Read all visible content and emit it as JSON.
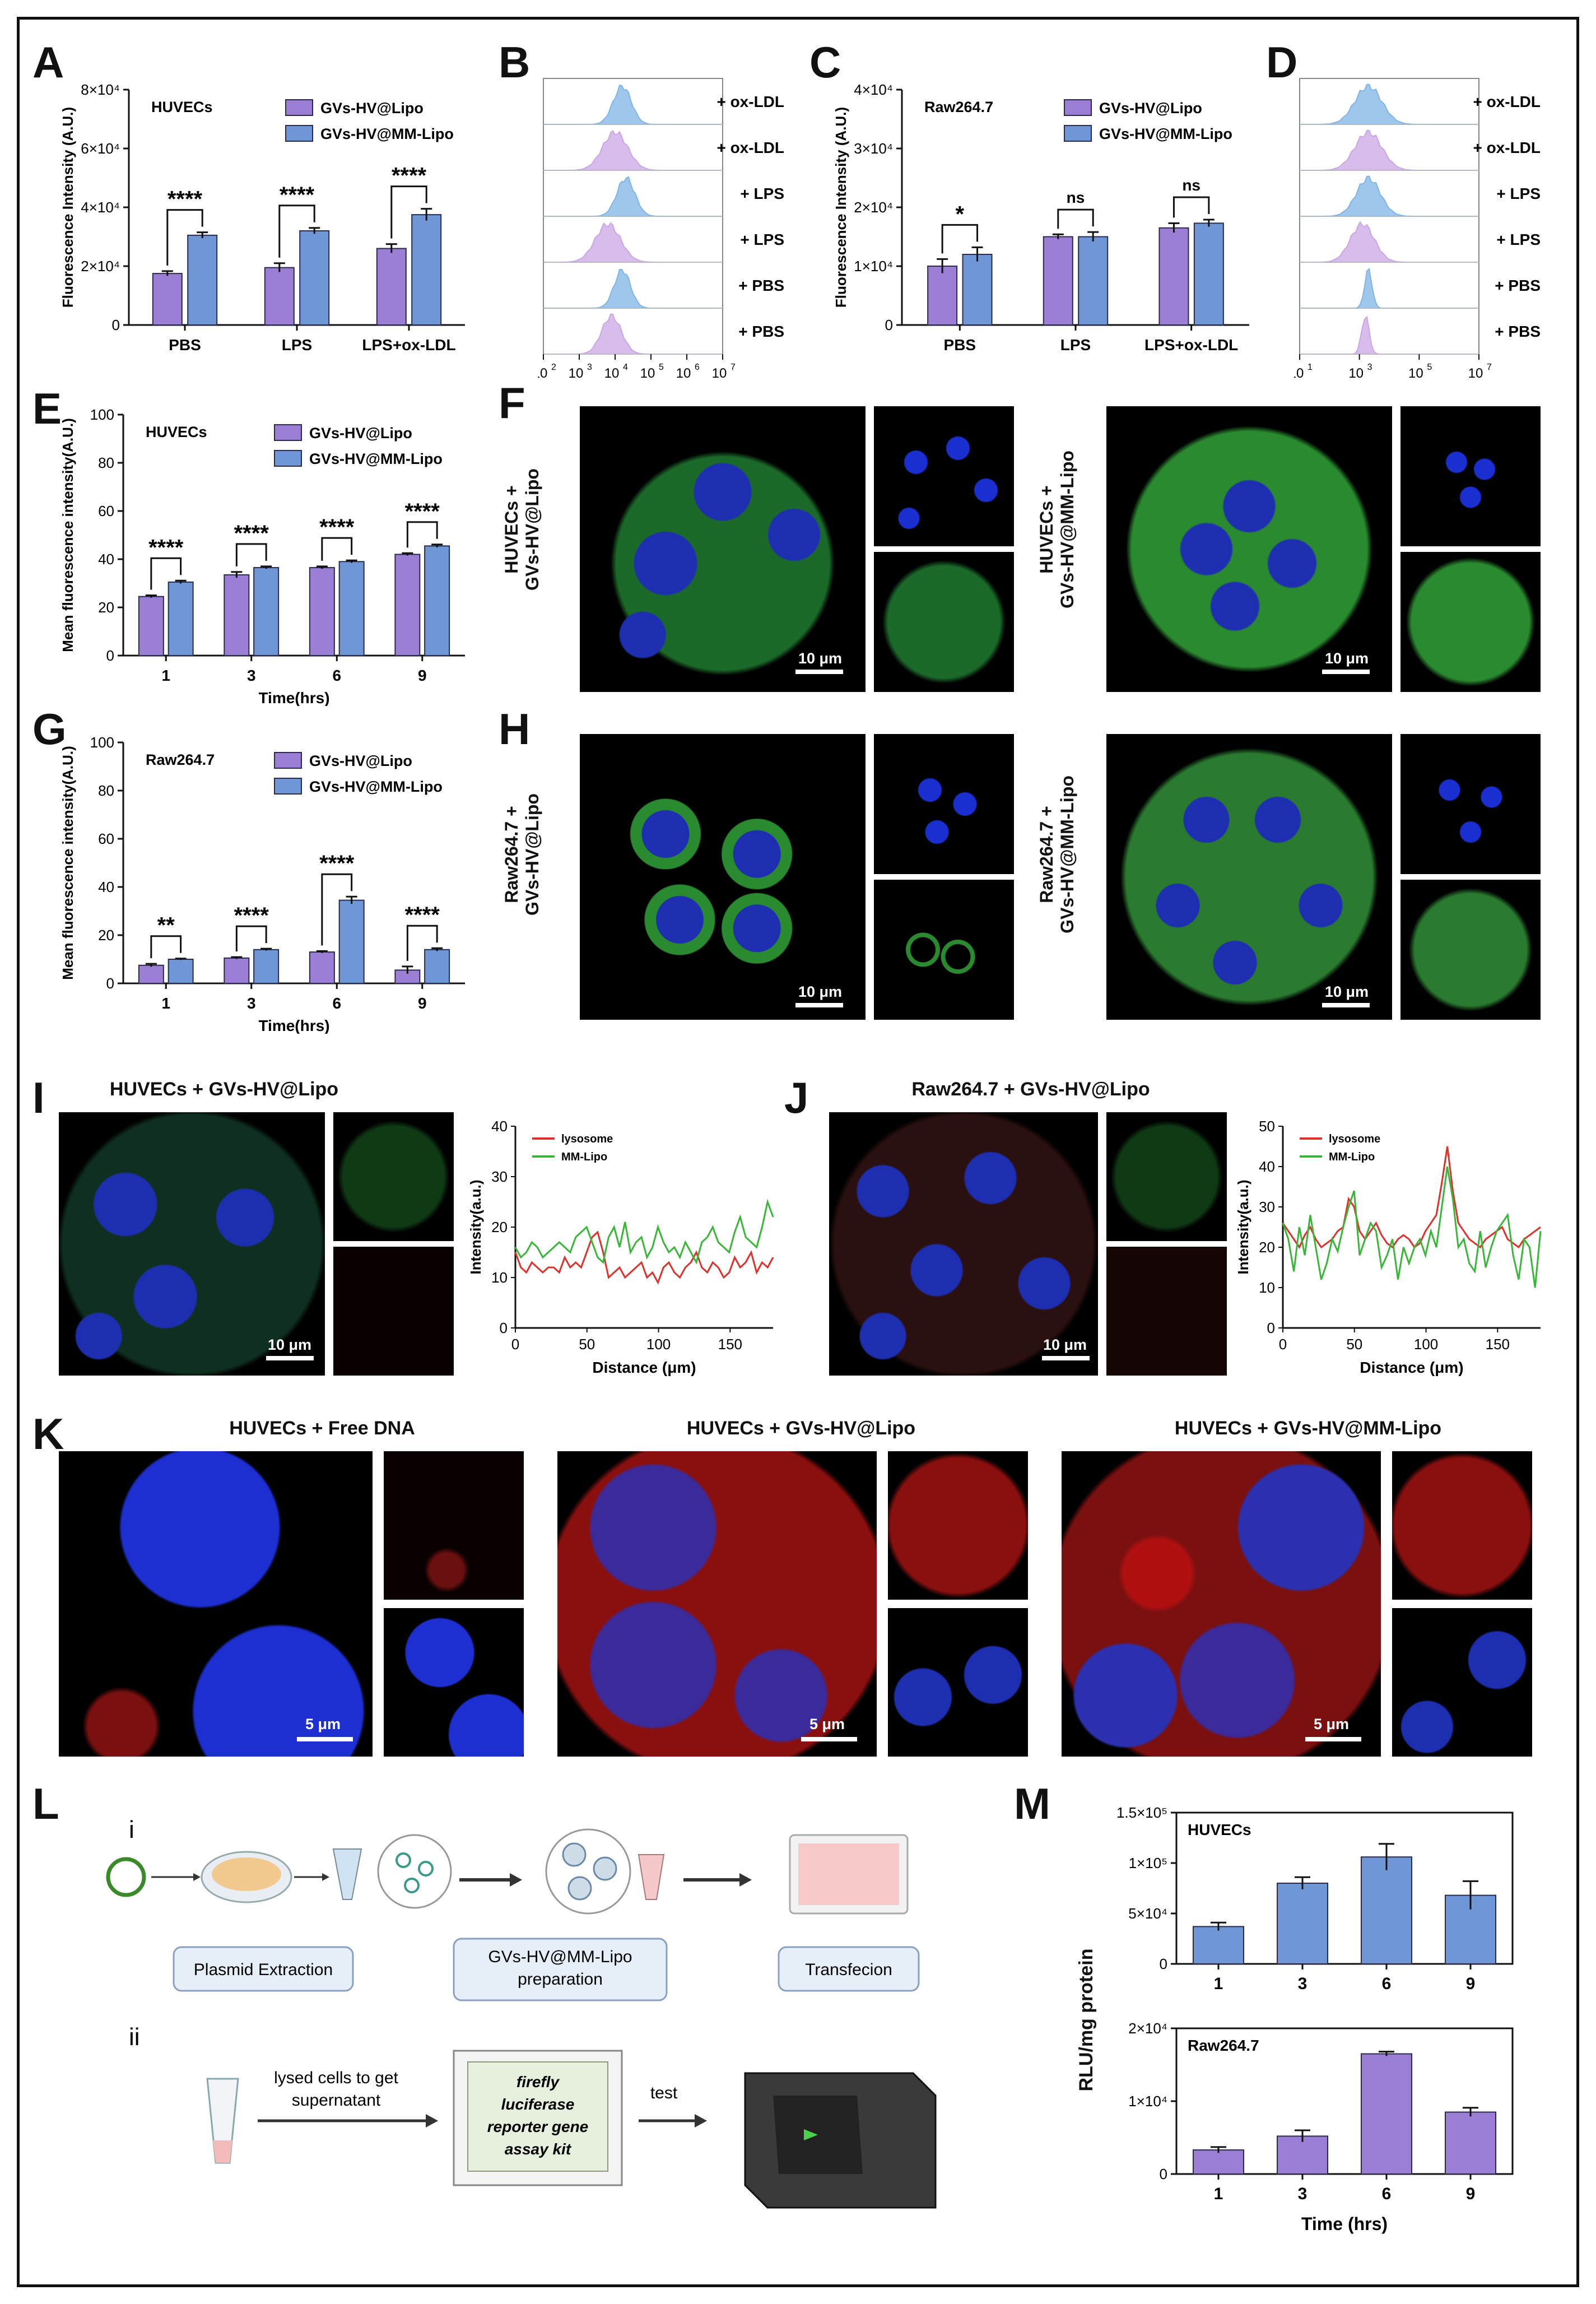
{
  "panels": {
    "A": "A",
    "B": "B",
    "C": "C",
    "D": "D",
    "E": "E",
    "F": "F",
    "G": "G",
    "H": "H",
    "I": "I",
    "J": "J",
    "K": "K",
    "L": "L",
    "M": "M"
  },
  "chart_data": [
    {
      "id": "A",
      "type": "bar",
      "title": "HUVECs",
      "ylabel": "Fluorescence Intensity  (A.U.)",
      "categories": [
        "PBS",
        "LPS",
        "LPS+ox-LDL"
      ],
      "ylim": [
        0,
        80000
      ],
      "yticks": [
        "0",
        "2×10⁴",
        "4×10⁴",
        "6×10⁴",
        "8×10⁴"
      ],
      "series": [
        {
          "name": "GVs-HV@Lipo",
          "color": "#9b7fd4",
          "values": [
            17500,
            19500,
            26000
          ],
          "errors": [
            800,
            1500,
            1500
          ]
        },
        {
          "name": "GVs-HV@MM-Lipo",
          "color": "#6f97d6",
          "values": [
            30500,
            32000,
            37500
          ],
          "errors": [
            1000,
            1000,
            2000
          ]
        }
      ],
      "significance": [
        "****",
        "****",
        "****"
      ]
    },
    {
      "id": "C",
      "type": "bar",
      "title": "Raw264.7",
      "ylabel": "Fluorescence Intensity  (A.U.)",
      "categories": [
        "PBS",
        "LPS",
        "LPS+ox-LDL"
      ],
      "ylim": [
        0,
        40000
      ],
      "yticks": [
        "0",
        "1×10⁴",
        "2×10⁴",
        "3×10⁴",
        "4×10⁴"
      ],
      "series": [
        {
          "name": "GVs-HV@Lipo",
          "color": "#9b7fd4",
          "values": [
            10000,
            15000,
            16500
          ],
          "errors": [
            1200,
            400,
            800
          ]
        },
        {
          "name": "GVs-HV@MM-Lipo",
          "color": "#6f97d6",
          "values": [
            12000,
            15000,
            17300
          ],
          "errors": [
            1200,
            800,
            600
          ]
        }
      ],
      "significance": [
        "*",
        "ns",
        "ns"
      ]
    },
    {
      "id": "E",
      "type": "bar",
      "title": "HUVECs",
      "ylabel": "Mean fluorescence intensity(A.U.)",
      "xlabel": "Time(hrs)",
      "categories": [
        "1",
        "3",
        "6",
        "9"
      ],
      "ylim": [
        0,
        100
      ],
      "yticks": [
        "0",
        "20",
        "40",
        "60",
        "80",
        "100"
      ],
      "series": [
        {
          "name": "GVs-HV@Lipo",
          "color": "#9b7fd4",
          "values": [
            24.5,
            33.5,
            36.5,
            42
          ],
          "errors": [
            0.5,
            1.2,
            0.5,
            0.5
          ]
        },
        {
          "name": "GVs-HV@MM-Lipo",
          "color": "#6f97d6",
          "values": [
            30.5,
            36.5,
            39,
            45.5
          ],
          "errors": [
            0.6,
            0.5,
            0.5,
            0.6
          ]
        }
      ],
      "significance": [
        "****",
        "****",
        "****",
        "****"
      ]
    },
    {
      "id": "G",
      "type": "bar",
      "title": "Raw264.7",
      "ylabel": "Mean fluorescence intensity(A.U.)",
      "xlabel": "Time(hrs)",
      "categories": [
        "1",
        "3",
        "6",
        "9"
      ],
      "ylim": [
        0,
        100
      ],
      "yticks": [
        "0",
        "20",
        "40",
        "60",
        "80",
        "100"
      ],
      "series": [
        {
          "name": "GVs-HV@Lipo",
          "color": "#9b7fd4",
          "values": [
            7.5,
            10.5,
            13,
            5.5
          ],
          "errors": [
            0.6,
            0.4,
            0.4,
            1.5
          ]
        },
        {
          "name": "GVs-HV@MM-Lipo",
          "color": "#6f97d6",
          "values": [
            10,
            14,
            34.5,
            14
          ],
          "errors": [
            0.3,
            0.4,
            1.5,
            0.6
          ]
        }
      ],
      "significance": [
        "**",
        "****",
        "****",
        "****"
      ]
    },
    {
      "id": "B",
      "type": "histogram-stack",
      "labels": [
        "+ ox-LDL",
        "+ ox-LDL",
        "+ LPS",
        "+ LPS",
        "+ PBS",
        "+ PBS"
      ],
      "colors": [
        "#7fb4e6",
        "#c9a6e6",
        "#7fb4e6",
        "#c9a6e6",
        "#7fb4e6",
        "#c9a6e6"
      ],
      "peaks": [
        4.2,
        4.0,
        4.3,
        3.8,
        4.2,
        3.9
      ],
      "widths": [
        0.5,
        0.7,
        0.5,
        0.7,
        0.45,
        0.55
      ],
      "xtick_exponents": [
        "2",
        "3",
        "4",
        "5",
        "6",
        "7"
      ],
      "xticks_min": 2,
      "xticks_max": 7
    },
    {
      "id": "D",
      "type": "histogram-stack",
      "labels": [
        "+ ox-LDL",
        "+ ox-LDL",
        "+ LPS",
        "+ LPS",
        "+ PBS",
        "+ PBS"
      ],
      "colors": [
        "#7fb4e6",
        "#c9a6e6",
        "#7fb4e6",
        "#c9a6e6",
        "#7fb4e6",
        "#c9a6e6"
      ],
      "peaks": [
        3.3,
        3.3,
        3.3,
        3.1,
        3.3,
        3.2
      ],
      "widths": [
        0.9,
        0.9,
        0.8,
        0.8,
        0.25,
        0.25
      ],
      "xtick_exponents": [
        "1",
        "3",
        "5",
        "7"
      ],
      "xticks_min": 1,
      "xticks_max": 7
    },
    {
      "id": "I",
      "type": "line",
      "xlabel": "Distance  (μm)",
      "ylabel": "Intensity(a.u.)",
      "xlim": [
        0,
        180
      ],
      "ylim": [
        0,
        40
      ],
      "xticks": [
        0,
        50,
        100,
        150
      ],
      "yticks": [
        0,
        10,
        20,
        30,
        40
      ],
      "series": [
        {
          "name": "lysosome",
          "color": "#e0302a",
          "y": [
            15,
            12,
            11,
            13,
            12,
            11,
            12,
            12,
            11,
            14,
            12,
            13,
            12,
            15,
            18,
            19,
            15,
            10,
            11,
            12,
            10,
            11,
            12,
            13,
            10,
            11,
            9,
            12,
            13,
            11,
            10,
            12,
            13,
            15,
            12,
            11,
            13,
            12,
            10,
            11,
            14,
            12,
            13,
            15,
            11,
            13,
            12,
            14
          ]
        },
        {
          "name": "MM-Lipo",
          "color": "#38b638",
          "y": [
            16,
            14,
            15,
            17,
            16,
            14,
            15,
            16,
            17,
            16,
            15,
            18,
            19,
            20,
            17,
            14,
            13,
            18,
            20,
            16,
            21,
            15,
            17,
            18,
            14,
            16,
            20,
            17,
            15,
            16,
            14,
            17,
            15,
            13,
            17,
            18,
            20,
            17,
            16,
            15,
            19,
            22,
            18,
            17,
            16,
            20,
            25,
            22
          ]
        }
      ]
    },
    {
      "id": "J",
      "type": "line",
      "xlabel": "Distance  (μm)",
      "ylabel": "Intensity(a.u.)",
      "xlim": [
        0,
        180
      ],
      "ylim": [
        0,
        50
      ],
      "xticks": [
        0,
        50,
        100,
        150
      ],
      "yticks": [
        0,
        10,
        20,
        30,
        40,
        50
      ],
      "series": [
        {
          "name": "lysosome",
          "color": "#e0302a",
          "y": [
            26,
            24,
            22,
            20,
            23,
            25,
            22,
            20,
            21,
            22,
            24,
            25,
            32,
            30,
            24,
            22,
            24,
            26,
            23,
            21,
            20,
            22,
            23,
            22,
            20,
            21,
            24,
            26,
            28,
            36,
            45,
            34,
            26,
            24,
            22,
            21,
            20,
            22,
            23,
            24,
            25,
            22,
            21,
            20,
            22,
            23,
            24,
            25
          ]
        },
        {
          "name": "MM-Lipo",
          "color": "#38b638",
          "y": [
            26,
            22,
            14,
            25,
            18,
            28,
            20,
            12,
            16,
            22,
            19,
            25,
            30,
            34,
            18,
            22,
            26,
            24,
            15,
            18,
            22,
            12,
            20,
            16,
            20,
            22,
            18,
            24,
            20,
            30,
            40,
            32,
            20,
            22,
            16,
            14,
            24,
            15,
            20,
            24,
            26,
            28,
            18,
            12,
            22,
            20,
            10,
            24
          ]
        }
      ]
    },
    {
      "id": "M1",
      "type": "bar",
      "title": "HUVECs",
      "categories": [
        "1",
        "3",
        "6",
        "9"
      ],
      "ylim": [
        0,
        150000
      ],
      "yticks": [
        "0",
        "5×10⁴",
        "1×10⁵",
        "1.5×10⁵"
      ],
      "color": "#6f97d6",
      "values": [
        37000,
        80000,
        106000,
        68000
      ],
      "errors": [
        4000,
        6000,
        13000,
        14000
      ]
    },
    {
      "id": "M2",
      "type": "bar",
      "title": "Raw264.7",
      "categories": [
        "1",
        "3",
        "6",
        "9"
      ],
      "ylim": [
        0,
        20000
      ],
      "yticks": [
        "0",
        "1×10⁴",
        "2×10⁴"
      ],
      "color": "#9b7fd4",
      "xlabel": "Time (hrs)",
      "values": [
        3300,
        5200,
        16500,
        8500
      ],
      "errors": [
        400,
        800,
        300,
        600
      ]
    }
  ],
  "M_ylabel": "RLU/mg protein",
  "F": {
    "left_label": "HUVECs +\nGVs-HV@Lipo",
    "right_label": "HUVECs +\nGVs-HV@MM-Lipo",
    "scale": "10 μm"
  },
  "H": {
    "left_label": "Raw264.7 +\nGVs-HV@Lipo",
    "right_label": "Raw264.7 +\nGVs-HV@MM-Lipo",
    "scale": "10 μm"
  },
  "I": {
    "title": "HUVECs + GVs-HV@Lipo",
    "scale": "10 μm"
  },
  "J": {
    "title": "Raw264.7 + GVs-HV@Lipo",
    "scale": "10 μm"
  },
  "K": {
    "titles": [
      "HUVECs + Free DNA",
      "HUVECs + GVs-HV@Lipo",
      "HUVECs + GVs-HV@MM-Lipo"
    ],
    "scale": "5 μm"
  },
  "L": {
    "i": "i",
    "ii": "ii",
    "step1": "Plasmid Extraction",
    "step2": "GVs-HV@MM-Lipo\npreparation",
    "step3": "Transfecion",
    "arrow1": "lysed cells to get\nsupernatant",
    "arrow2": "test",
    "kit_l1": "firefly",
    "kit_l2": "luciferase",
    "kit_l3": "reporter gene",
    "kit_l4": "assay kit"
  }
}
